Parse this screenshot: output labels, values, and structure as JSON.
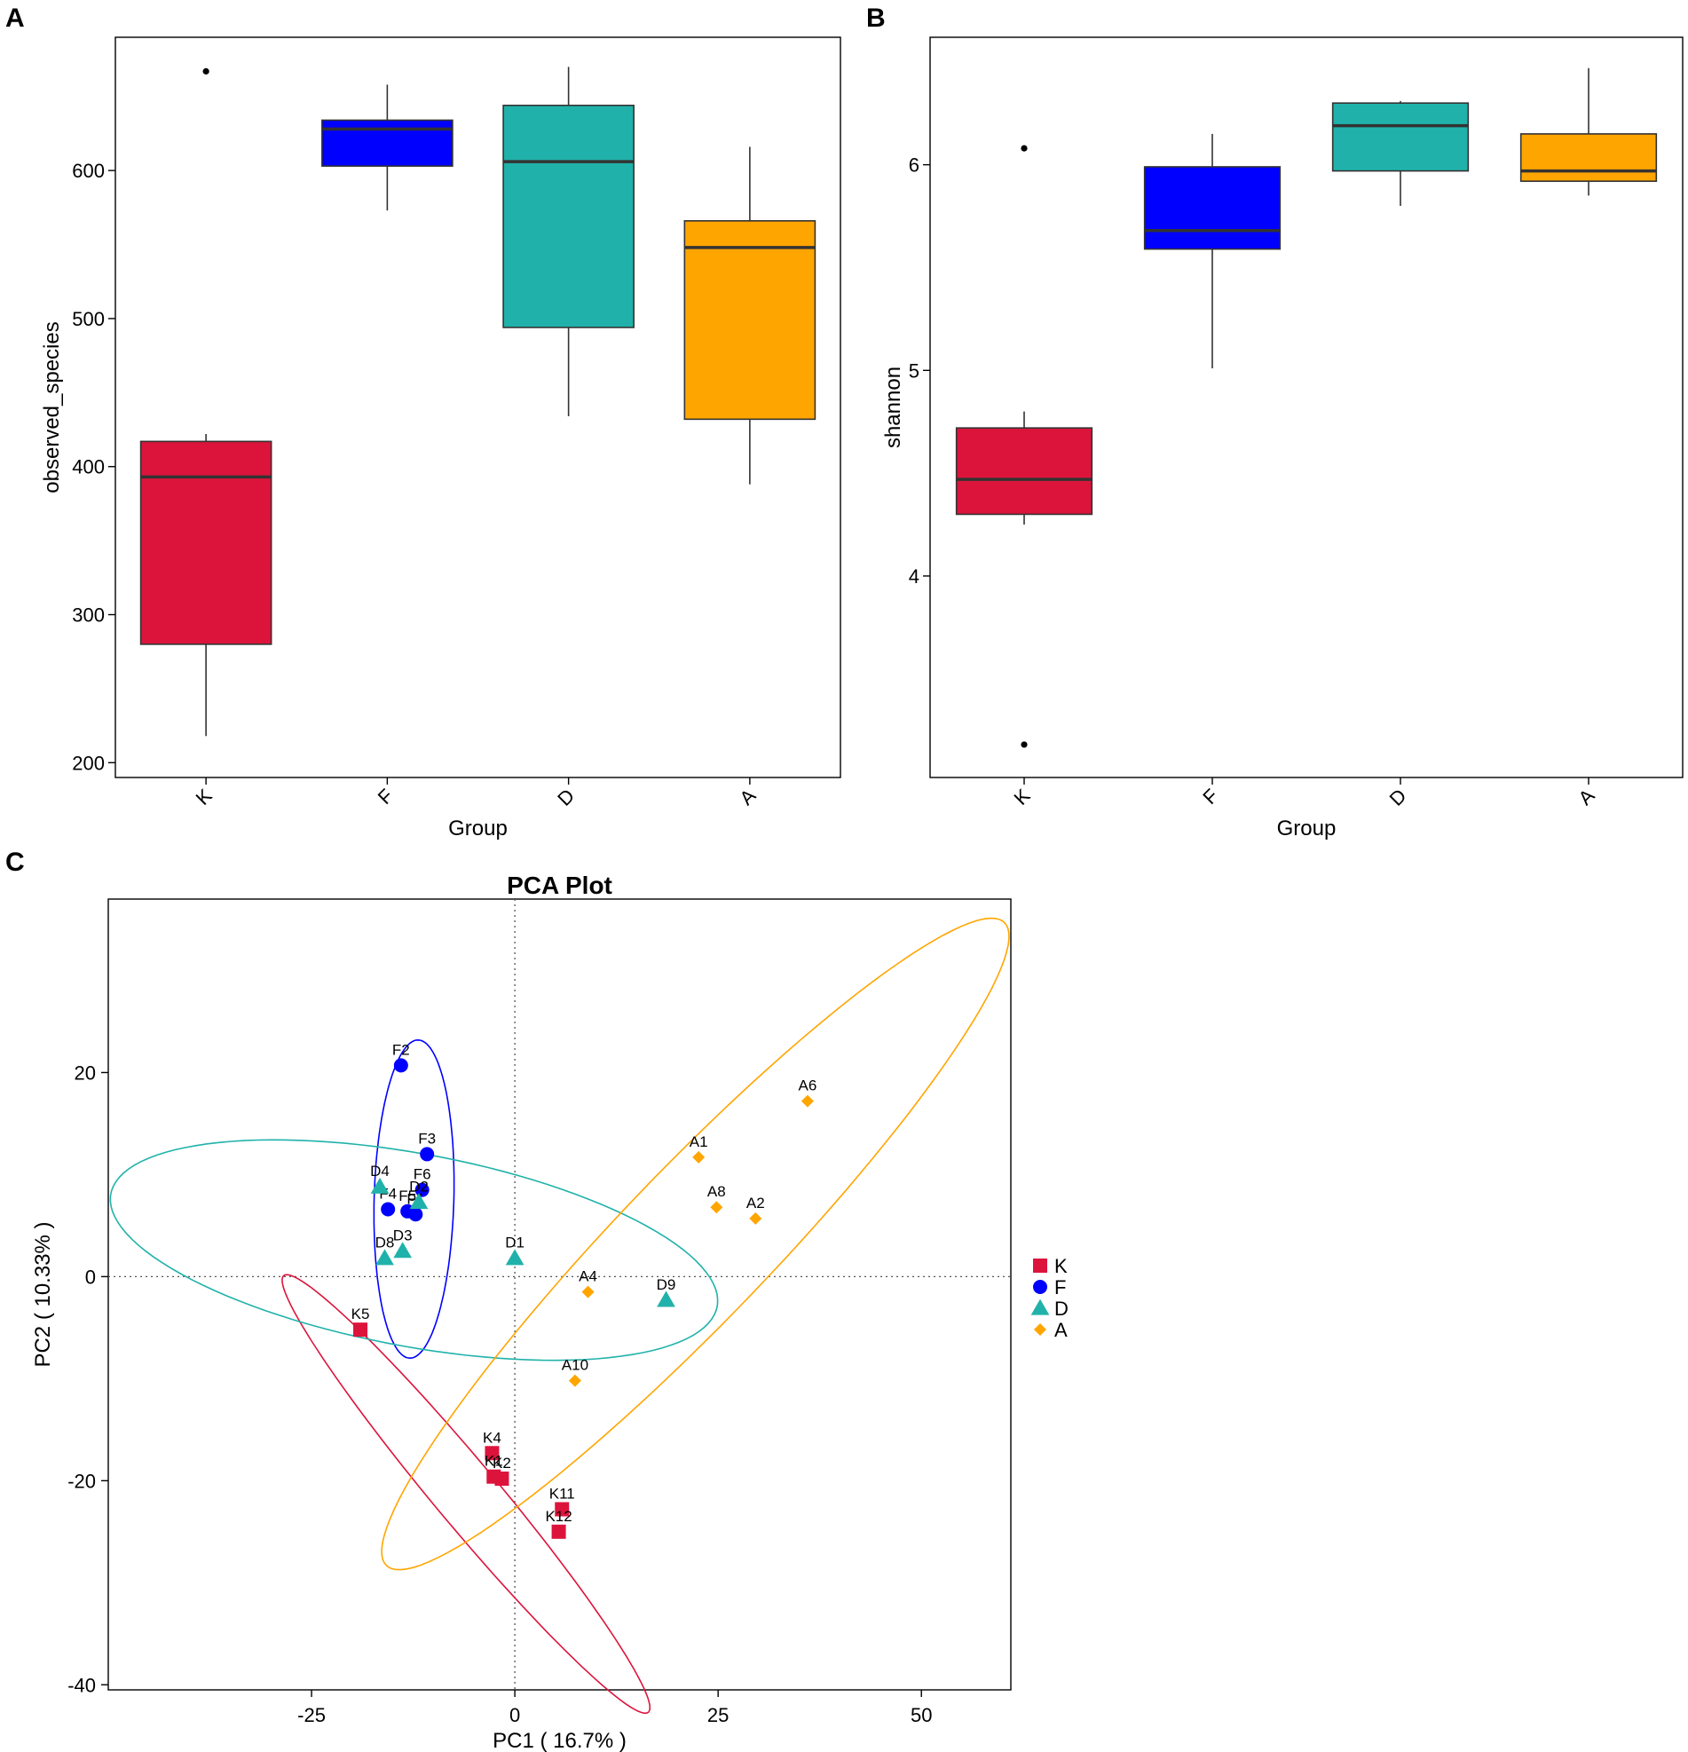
{
  "panel_letters": {
    "a": "A",
    "b": "B",
    "c": "C"
  },
  "chart_data": [
    {
      "panel": "A",
      "type": "boxplot",
      "xlabel": "Group",
      "ylabel": "observed_species",
      "ylim": [
        190,
        690
      ],
      "yticks": [
        200,
        300,
        400,
        500,
        600
      ],
      "categories": [
        "K",
        "F",
        "D",
        "A"
      ],
      "boxes": [
        {
          "group": "K",
          "color": "#DC143C",
          "whisker_low": 218,
          "q1": 280,
          "median": 393,
          "q3": 417,
          "whisker_high": 422,
          "outliers": [
            667
          ]
        },
        {
          "group": "F",
          "color": "#0000FF",
          "whisker_low": 573,
          "q1": 603,
          "median": 628,
          "q3": 634,
          "whisker_high": 658,
          "outliers": []
        },
        {
          "group": "D",
          "color": "#20B2AA",
          "whisker_low": 434,
          "q1": 494,
          "median": 606,
          "q3": 644,
          "whisker_high": 670,
          "outliers": []
        },
        {
          "group": "A",
          "color": "#FFA500",
          "whisker_low": 388,
          "q1": 432,
          "median": 548,
          "q3": 566,
          "whisker_high": 616,
          "outliers": []
        }
      ]
    },
    {
      "panel": "B",
      "type": "boxplot",
      "xlabel": "Group",
      "ylabel": "shannon",
      "ylim": [
        3.02,
        6.62
      ],
      "yticks": [
        4,
        5,
        6
      ],
      "categories": [
        "K",
        "F",
        "D",
        "A"
      ],
      "boxes": [
        {
          "group": "K",
          "color": "#DC143C",
          "whisker_low": 4.25,
          "q1": 4.3,
          "median": 4.47,
          "q3": 4.72,
          "whisker_high": 4.8,
          "outliers": [
            6.08,
            3.18
          ]
        },
        {
          "group": "F",
          "color": "#0000FF",
          "whisker_low": 5.01,
          "q1": 5.59,
          "median": 5.68,
          "q3": 5.99,
          "whisker_high": 6.15,
          "outliers": []
        },
        {
          "group": "D",
          "color": "#20B2AA",
          "whisker_low": 5.8,
          "q1": 5.97,
          "median": 6.19,
          "q3": 6.3,
          "whisker_high": 6.31,
          "outliers": []
        },
        {
          "group": "A",
          "color": "#FFA500",
          "whisker_low": 5.85,
          "q1": 5.92,
          "median": 5.97,
          "q3": 6.15,
          "whisker_high": 6.47,
          "outliers": []
        }
      ]
    },
    {
      "panel": "C",
      "type": "scatter",
      "title": "PCA Plot",
      "xlabel": "PC1 ( 16.7% )",
      "ylabel": "PC2 ( 10.33% )",
      "xlim": [
        -50,
        61
      ],
      "ylim": [
        -40.5,
        37
      ],
      "xticks": [
        -25,
        0,
        25,
        50
      ],
      "yticks": [
        -40,
        -20,
        0,
        20
      ],
      "reference_lines": {
        "x": 0,
        "y": 0
      },
      "legend_position": "right",
      "series": [
        {
          "name": "K",
          "color": "#DC143C",
          "marker": "square",
          "points": [
            {
              "label": "K5",
              "x": -19,
              "y": -5.2
            },
            {
              "label": "K4",
              "x": -2.8,
              "y": -17.3
            },
            {
              "label": "K1",
              "x": -2.6,
              "y": -19.6
            },
            {
              "label": "K2",
              "x": -1.6,
              "y": -19.8
            },
            {
              "label": "K11",
              "x": 5.8,
              "y": -22.8
            },
            {
              "label": "K12",
              "x": 5.4,
              "y": -25
            }
          ]
        },
        {
          "name": "F",
          "color": "#0000FF",
          "marker": "circle",
          "points": [
            {
              "label": "F2",
              "x": -14,
              "y": 20.7
            },
            {
              "label": "F3",
              "x": -10.8,
              "y": 12
            },
            {
              "label": "F6",
              "x": -11.4,
              "y": 8.5
            },
            {
              "label": "F4",
              "x": -15.6,
              "y": 6.6
            },
            {
              "label": "F5",
              "x": -13.2,
              "y": 6.4
            },
            {
              "label": "F1",
              "x": -12.2,
              "y": 6.1
            }
          ]
        },
        {
          "name": "D",
          "color": "#20B2AA",
          "marker": "triangle",
          "points": [
            {
              "label": "D4",
              "x": -16.6,
              "y": 8.8
            },
            {
              "label": "D2",
              "x": -11.8,
              "y": 7.3
            },
            {
              "label": "D3",
              "x": -13.8,
              "y": 2.5
            },
            {
              "label": "D8",
              "x": -16,
              "y": 1.8
            },
            {
              "label": "D1",
              "x": 0,
              "y": 1.8
            },
            {
              "label": "D9",
              "x": 18.6,
              "y": -2.3
            }
          ]
        },
        {
          "name": "A",
          "color": "#FFA500",
          "marker": "diamond",
          "points": [
            {
              "label": "A6",
              "x": 36,
              "y": 17.2
            },
            {
              "label": "A1",
              "x": 22.6,
              "y": 11.7
            },
            {
              "label": "A8",
              "x": 24.8,
              "y": 6.8
            },
            {
              "label": "A2",
              "x": 29.6,
              "y": 5.7
            },
            {
              "label": "A4",
              "x": 9,
              "y": -1.5
            },
            {
              "label": "A10",
              "x": 7.4,
              "y": -10.2
            }
          ]
        }
      ],
      "ellipses": [
        {
          "group": "K",
          "color": "#DC143C",
          "center": [
            -6,
            -21.3
          ],
          "semi_axes": [
            31,
            3.5
          ],
          "angle_deg": -43.5
        },
        {
          "group": "F",
          "color": "#0000FF",
          "center": [
            -12.4,
            7.6
          ],
          "semi_axes": [
            4.9,
            15.6
          ],
          "angle_deg": -2
        },
        {
          "group": "D",
          "color": "#20B2AA",
          "center": [
            -12.4,
            2.6
          ],
          "semi_axes": [
            37.7,
            9.5
          ],
          "angle_deg": -8.1
        },
        {
          "group": "A",
          "color": "#FFA500",
          "center": [
            22.2,
            3.2
          ],
          "semi_axes": [
            49.4,
            8.2
          ],
          "angle_deg": 39.3
        }
      ]
    }
  ]
}
